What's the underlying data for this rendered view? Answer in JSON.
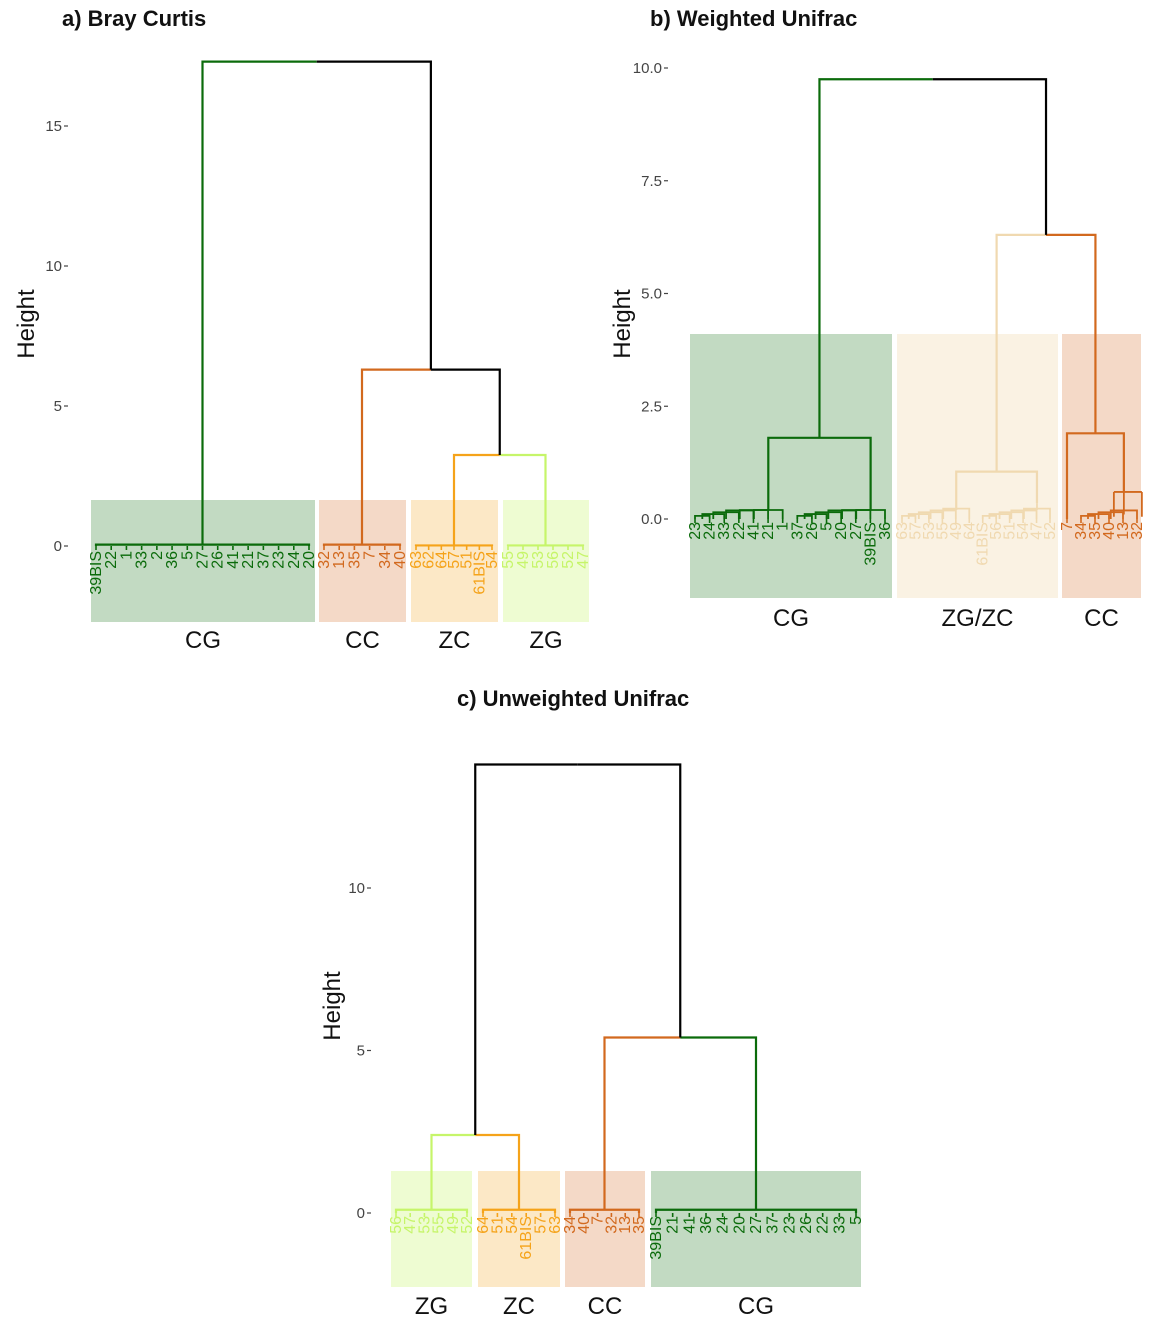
{
  "colors": {
    "CG": "#0b6b0b",
    "CC": "#d2691e",
    "ZC": "#f5a31a",
    "ZG": "#c6f56a",
    "ZGZC": "#f0d9b0",
    "root": "#000000"
  },
  "chart_data": [
    {
      "type": "dendrogram",
      "title": "a) Bray Curtis",
      "ylabel": "Height",
      "yticks": [
        0,
        5,
        10,
        15
      ],
      "ylim": [
        -2.7,
        17.8
      ],
      "root_height": 17.3,
      "groups": [
        {
          "name": "CG",
          "color_key": "CG",
          "leaves": [
            "39BIS",
            "22",
            "1",
            "33",
            "2",
            "36",
            "5",
            "27",
            "26",
            "41",
            "21",
            "37",
            "23",
            "24",
            "20"
          ],
          "merge_height": 0.05
        },
        {
          "name": "CC",
          "color_key": "CC",
          "leaves": [
            "32",
            "13",
            "35",
            "7",
            "34",
            "40"
          ],
          "merge_height": 0.05
        },
        {
          "name": "ZC",
          "color_key": "ZC",
          "leaves": [
            "63",
            "62",
            "64",
            "57",
            "51",
            "61BIS",
            "54"
          ],
          "merge_height": 0.02
        },
        {
          "name": "ZG",
          "color_key": "ZG",
          "leaves": [
            "55",
            "49",
            "53",
            "56",
            "52",
            "47"
          ],
          "merge_height": 0.02
        }
      ],
      "merges": [
        {
          "nodes": [
            "ZC",
            "ZG"
          ],
          "height": 3.25,
          "color_key": "ZC"
        },
        {
          "nodes": [
            "CC",
            "ZC+ZG"
          ],
          "height": 6.3,
          "color_key": "root"
        },
        {
          "nodes": [
            "CG",
            "rest"
          ],
          "height": 17.3,
          "color_key": "root"
        }
      ]
    },
    {
      "type": "dendrogram",
      "title": "b) Weighted Unifrac",
      "ylabel": "Height",
      "yticks": [
        "0.0",
        "2.5",
        "5.0",
        "7.5",
        "10.0"
      ],
      "ylim": [
        -1.8,
        10.3
      ],
      "root_height": 9.75,
      "groups": [
        {
          "name": "CG",
          "color_key": "CG",
          "leaves": [
            "23",
            "24",
            "33",
            "22",
            "41",
            "21",
            "1",
            "37",
            "26",
            "5",
            "20",
            "27",
            "39BIS",
            "36"
          ],
          "merge_height": 1.8
        },
        {
          "name": "ZG/ZC",
          "color_key": "ZGZC",
          "leaves": [
            "63",
            "57",
            "53",
            "55",
            "49",
            "64",
            "61BIS",
            "56",
            "51",
            "54",
            "47",
            "52"
          ],
          "merge_height": 1.05
        },
        {
          "name": "CC",
          "color_key": "CC",
          "leaves": [
            "7",
            "34",
            "35",
            "40",
            "13",
            "32"
          ],
          "merge_height": 1.9
        }
      ],
      "merges": [
        {
          "nodes": [
            "ZG/ZC",
            "CC"
          ],
          "height": 6.3,
          "color_key": "CC"
        },
        {
          "nodes": [
            "CG",
            "rest"
          ],
          "height": 9.75,
          "color_key": "root"
        }
      ]
    },
    {
      "type": "dendrogram",
      "title": "c) Unweighted Unifrac",
      "ylabel": "Height",
      "yticks": [
        0,
        5,
        10
      ],
      "ylim": [
        -2.3,
        13.9
      ],
      "root_height": 13.8,
      "groups": [
        {
          "name": "ZG",
          "color_key": "ZG",
          "leaves": [
            "56",
            "47",
            "53",
            "55",
            "49",
            "52"
          ],
          "merge_height": 0.1
        },
        {
          "name": "ZC",
          "color_key": "ZC",
          "leaves": [
            "64",
            "51",
            "54",
            "61BIS",
            "57",
            "63"
          ],
          "merge_height": 0.1
        },
        {
          "name": "CC",
          "color_key": "CC",
          "leaves": [
            "34",
            "40",
            "7",
            "32",
            "13",
            "35"
          ],
          "merge_height": 0.1
        },
        {
          "name": "CG",
          "color_key": "CG",
          "leaves": [
            "39BIS",
            "21",
            "41",
            "36",
            "24",
            "20",
            "27",
            "37",
            "23",
            "26",
            "22",
            "33",
            "5"
          ],
          "merge_height": 0.1
        }
      ],
      "merges": [
        {
          "nodes": [
            "ZG",
            "ZC"
          ],
          "height": 2.4,
          "color_key": "ZC"
        },
        {
          "nodes": [
            "CC",
            "CG"
          ],
          "height": 5.4,
          "color_key": "CC"
        },
        {
          "nodes": [
            "ZG+ZC",
            "CC+CG"
          ],
          "height": 13.8,
          "color_key": "root"
        }
      ]
    }
  ]
}
